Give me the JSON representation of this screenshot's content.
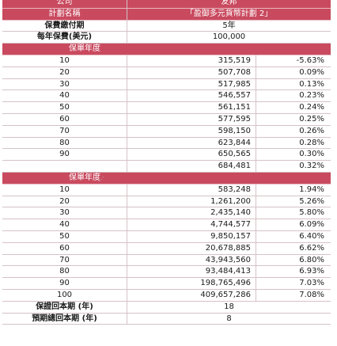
{
  "header": {
    "company_label": "公司",
    "company_value": "友邦",
    "plan_label": "計劃名稱",
    "plan_value": "「盈御多元貨幣計劃 2」"
  },
  "info": [
    {
      "label": "保費繳付期",
      "value": "5年"
    },
    {
      "label": "每年保費(美元)",
      "value": "100,000"
    }
  ],
  "section1": {
    "title": "保單年度",
    "rows": [
      {
        "year": "10",
        "value": "315,519",
        "rate": "-5.63%"
      },
      {
        "year": "20",
        "value": "507,708",
        "rate": "0.09%"
      },
      {
        "year": "30",
        "value": "517,985",
        "rate": "0.13%"
      },
      {
        "year": "40",
        "value": "546,557",
        "rate": "0.23%"
      },
      {
        "year": "50",
        "value": "561,151",
        "rate": "0.24%"
      },
      {
        "year": "60",
        "value": "577,595",
        "rate": "0.25%"
      },
      {
        "year": "70",
        "value": "598,150",
        "rate": "0.26%"
      },
      {
        "year": "80",
        "value": "623,844",
        "rate": "0.28%"
      },
      {
        "year": "90",
        "value": "650,565",
        "rate": "0.30%"
      },
      {
        "year": "",
        "value": "684,481",
        "rate": "0.32%"
      }
    ]
  },
  "section2": {
    "title": "保單年度",
    "rows": [
      {
        "year": "10",
        "value": "583,248",
        "rate": "1.94%"
      },
      {
        "year": "20",
        "value": "1,261,200",
        "rate": "5.26%"
      },
      {
        "year": "30",
        "value": "2,435,140",
        "rate": "5.80%"
      },
      {
        "year": "40",
        "value": "4,744,577",
        "rate": "6.09%"
      },
      {
        "year": "50",
        "value": "9,850,157",
        "rate": "6.40%"
      },
      {
        "year": "60",
        "value": "20,678,885",
        "rate": "6.62%"
      },
      {
        "year": "70",
        "value": "43,943,560",
        "rate": "6.80%"
      },
      {
        "year": "80",
        "value": "93,484,413",
        "rate": "6.93%"
      },
      {
        "year": "90",
        "value": "198,765,496",
        "rate": "7.03%"
      },
      {
        "year": "100",
        "value": "409,657,286",
        "rate": "7.08%"
      }
    ]
  },
  "footer": [
    {
      "label": "保證回本期 (年)",
      "value": "18"
    },
    {
      "label": "預期總回本期 (年)",
      "value": "8"
    }
  ]
}
